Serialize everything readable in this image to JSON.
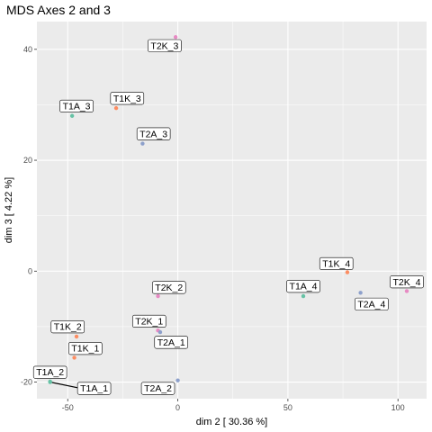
{
  "chart_data": {
    "type": "scatter",
    "title": "MDS Axes 2 and 3",
    "xlabel": "dim 2 [ 30.36 %]",
    "ylabel": "dim 3 [ 4.22 %]",
    "xlim": [
      -64,
      113
    ],
    "ylim": [
      -23,
      45
    ],
    "xticks": [
      -50,
      0,
      50,
      100
    ],
    "xtick_labels": [
      "-50",
      "0",
      "50",
      "100"
    ],
    "yticks": [
      -20,
      0,
      20,
      40
    ],
    "ytick_labels": [
      "-20",
      "0",
      "20",
      "40"
    ],
    "grid": true,
    "legend": "none",
    "colors": {
      "T1A": "#66c2a5",
      "T1K": "#fc8d62",
      "T2A": "#8da0cb",
      "T2K": "#e78ac3",
      "panel": "#ebebeb",
      "grid_major": "#ffffff"
    },
    "points": [
      {
        "label": "T2K_3",
        "group": "T2K",
        "x": -1,
        "y": 42.2,
        "lx": -6,
        "ly": 40.7
      },
      {
        "label": "T1A_3",
        "group": "T1A",
        "x": -48,
        "y": 28.0,
        "lx": -46,
        "ly": 29.8
      },
      {
        "label": "T1K_3",
        "group": "T1K",
        "x": -28,
        "y": 29.4,
        "lx": -23,
        "ly": 31.2
      },
      {
        "label": "T2A_3",
        "group": "T2A",
        "x": -16,
        "y": 23.0,
        "lx": -11,
        "ly": 24.8
      },
      {
        "label": "T1K_4",
        "group": "T1K",
        "x": 77,
        "y": -0.2,
        "lx": 72,
        "ly": 1.4
      },
      {
        "label": "T2K_4",
        "group": "T2K",
        "x": 104,
        "y": -3.6,
        "lx": 104,
        "ly": -1.9
      },
      {
        "label": "T1A_4",
        "group": "T1A",
        "x": 57,
        "y": -4.5,
        "lx": 57,
        "ly": -2.7
      },
      {
        "label": "T2A_4",
        "group": "T2A",
        "x": 83,
        "y": -3.9,
        "lx": 88,
        "ly": -5.9
      },
      {
        "label": "T2K_2",
        "group": "T2K",
        "x": -9,
        "y": -4.5,
        "lx": -4,
        "ly": -2.9
      },
      {
        "label": "T2K_1",
        "group": "T2K",
        "x": -9,
        "y": -10.7,
        "lx": -13,
        "ly": -9.0
      },
      {
        "label": "T2A_1",
        "group": "T2A",
        "x": -8,
        "y": -11.0,
        "lx": -3,
        "ly": -12.8
      },
      {
        "label": "T1K_2",
        "group": "T1K",
        "x": -46,
        "y": -11.8,
        "lx": -50,
        "ly": -10.0
      },
      {
        "label": "T1K_1",
        "group": "T1K",
        "x": -47,
        "y": -15.6,
        "lx": -42,
        "ly": -13.9
      },
      {
        "label": "T1A_2",
        "group": "T1A",
        "x": -58,
        "y": -19.9,
        "lx": -58,
        "ly": -18.2
      },
      {
        "label": "T2A_2",
        "group": "T2A",
        "x": 0,
        "y": -19.7,
        "lx": -9,
        "ly": -21.1
      },
      {
        "label": "T1A_1",
        "group": "T1A",
        "x": -58,
        "y": -20.0,
        "lx": -38,
        "ly": -21.1,
        "leader": true
      }
    ]
  }
}
